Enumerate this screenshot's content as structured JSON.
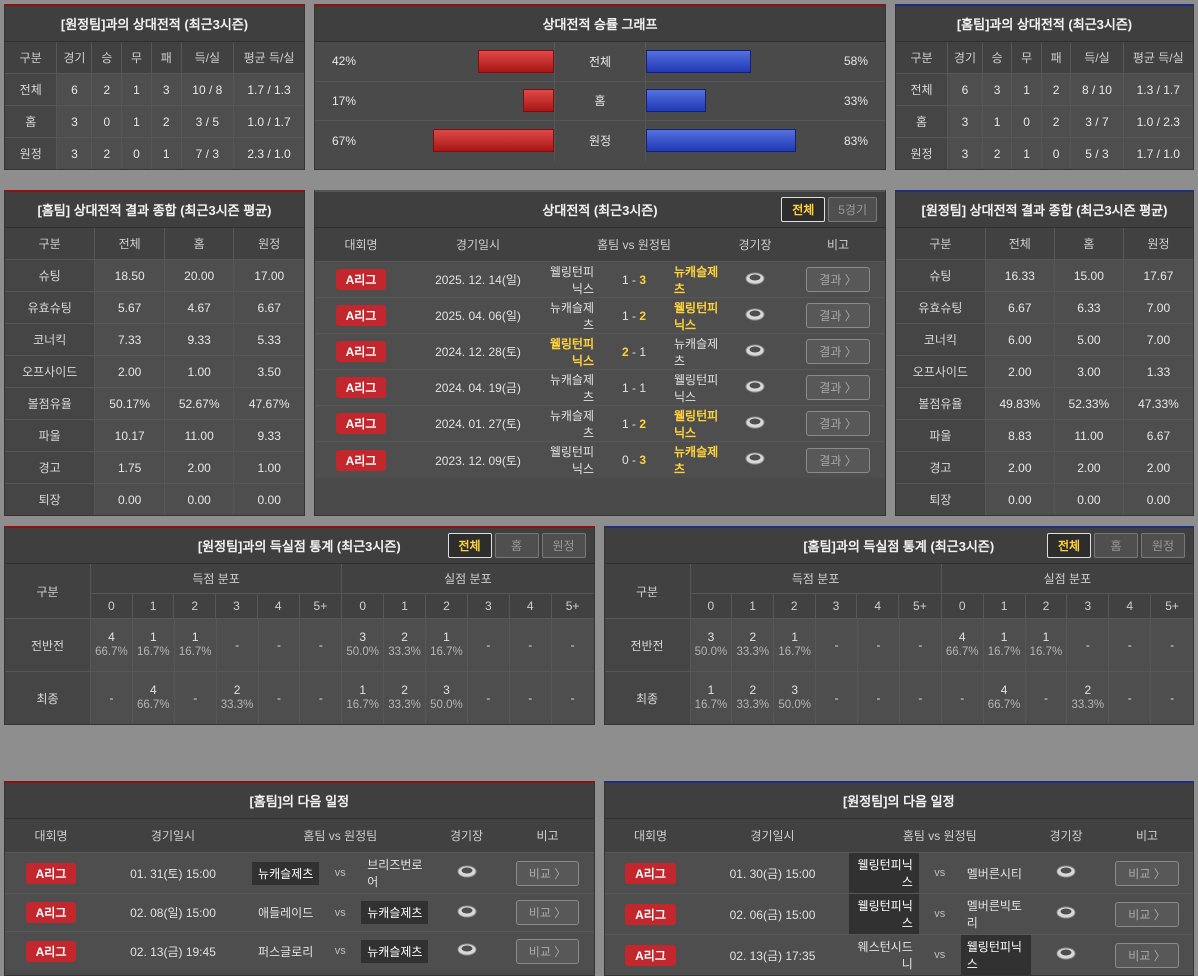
{
  "h2h_away": {
    "title": "[원정팀]과의 상대전적 (최근3시즌)",
    "headers": [
      "구분",
      "경기",
      "승",
      "무",
      "패",
      "득/실",
      "평균 득/실"
    ],
    "rows": [
      {
        "label": "전체",
        "c1": "6",
        "c2": "2",
        "c3": "1",
        "c4": "3",
        "c5": "10 / 8",
        "c6": "1.7 / 1.3"
      },
      {
        "label": "홈",
        "c1": "3",
        "c2": "0",
        "c3": "1",
        "c4": "2",
        "c5": "3 / 5",
        "c6": "1.0 / 1.7"
      },
      {
        "label": "원정",
        "c1": "3",
        "c2": "2",
        "c3": "0",
        "c4": "1",
        "c5": "7 / 3",
        "c6": "2.3 / 1.0"
      }
    ]
  },
  "winrate": {
    "title": "상대전적 승률 그래프",
    "chart_data": {
      "type": "bar",
      "categories": [
        "전체",
        "홈",
        "원정"
      ],
      "series": [
        {
          "name": "home-red",
          "values": [
            42,
            17,
            67
          ]
        },
        {
          "name": "away-blue",
          "values": [
            58,
            33,
            83
          ]
        }
      ],
      "unit": "%",
      "legend_position": "none",
      "colors": {
        "red": "#c1272d",
        "blue": "#2f4cc4"
      }
    },
    "rows": [
      {
        "label": "전체",
        "left_pct": "42%",
        "right_pct": "58%"
      },
      {
        "label": "홈",
        "left_pct": "17%",
        "right_pct": "33%"
      },
      {
        "label": "원정",
        "left_pct": "67%",
        "right_pct": "83%"
      }
    ]
  },
  "h2h_home": {
    "title": "[홈팀]과의 상대전적 (최근3시즌)",
    "headers": [
      "구분",
      "경기",
      "승",
      "무",
      "패",
      "득/실",
      "평균 득/실"
    ],
    "rows": [
      {
        "label": "전체",
        "c1": "6",
        "c2": "3",
        "c3": "1",
        "c4": "2",
        "c5": "8 / 10",
        "c6": "1.3 / 1.7"
      },
      {
        "label": "홈",
        "c1": "3",
        "c2": "1",
        "c3": "0",
        "c4": "2",
        "c5": "3 / 7",
        "c6": "1.0 / 2.3"
      },
      {
        "label": "원정",
        "c1": "3",
        "c2": "2",
        "c3": "1",
        "c4": "0",
        "c5": "5 / 3",
        "c6": "1.7 / 1.0"
      }
    ]
  },
  "summary_home": {
    "title": "[홈팀] 상대전적 결과 종합 (최근3시즌 평균)",
    "headers": [
      "구분",
      "전체",
      "홈",
      "원정"
    ],
    "rows": [
      {
        "label": "슈팅",
        "c1": "18.50",
        "c2": "20.00",
        "c3": "17.00"
      },
      {
        "label": "유효슈팅",
        "c1": "5.67",
        "c2": "4.67",
        "c3": "6.67"
      },
      {
        "label": "코너킥",
        "c1": "7.33",
        "c2": "9.33",
        "c3": "5.33"
      },
      {
        "label": "오프사이드",
        "c1": "2.00",
        "c2": "1.00",
        "c3": "3.50"
      },
      {
        "label": "볼점유율",
        "c1": "50.17%",
        "c2": "52.67%",
        "c3": "47.67%"
      },
      {
        "label": "파울",
        "c1": "10.17",
        "c2": "11.00",
        "c3": "9.33"
      },
      {
        "label": "경고",
        "c1": "1.75",
        "c2": "2.00",
        "c3": "1.00"
      },
      {
        "label": "퇴장",
        "c1": "0.00",
        "c2": "0.00",
        "c3": "0.00"
      }
    ]
  },
  "summary_away": {
    "title": "[원정팀] 상대전적 결과 종합 (최근3시즌 평균)",
    "headers": [
      "구분",
      "전체",
      "홈",
      "원정"
    ],
    "rows": [
      {
        "label": "슈팅",
        "c1": "16.33",
        "c2": "15.00",
        "c3": "17.67"
      },
      {
        "label": "유효슈팅",
        "c1": "6.67",
        "c2": "6.33",
        "c3": "7.00"
      },
      {
        "label": "코너킥",
        "c1": "6.00",
        "c2": "5.00",
        "c3": "7.00"
      },
      {
        "label": "오프사이드",
        "c1": "2.00",
        "c2": "3.00",
        "c3": "1.33"
      },
      {
        "label": "볼점유율",
        "c1": "49.83%",
        "c2": "52.33%",
        "c3": "47.33%"
      },
      {
        "label": "파울",
        "c1": "8.83",
        "c2": "11.00",
        "c3": "6.67"
      },
      {
        "label": "경고",
        "c1": "2.00",
        "c2": "2.00",
        "c3": "2.00"
      },
      {
        "label": "퇴장",
        "c1": "0.00",
        "c2": "0.00",
        "c3": "0.00"
      }
    ]
  },
  "matches": {
    "title": "상대전적 (최근3시즌)",
    "tabs": {
      "all": "전체",
      "five": "5경기"
    },
    "headers": [
      "대회명",
      "경기일시",
      "홈팀  vs  원정팀",
      "경기장",
      "비고"
    ],
    "button_label": "결과 〉",
    "rows": [
      {
        "league": "A리그",
        "date": "2025. 12. 14(일)",
        "home": "웰링턴피닉스",
        "home_cls": "",
        "hs": "1",
        "hs_cls": "",
        "sep": "-",
        "as": "3",
        "as_cls": "win",
        "away": "뉴캐슬제츠",
        "away_cls": "win",
        "btn": "결과 〉"
      },
      {
        "league": "A리그",
        "date": "2025. 04. 06(일)",
        "home": "뉴캐슬제츠",
        "home_cls": "",
        "hs": "1",
        "hs_cls": "",
        "sep": "-",
        "as": "2",
        "as_cls": "win",
        "away": "웰링턴피닉스",
        "away_cls": "win",
        "btn": "결과 〉"
      },
      {
        "league": "A리그",
        "date": "2024. 12. 28(토)",
        "home": "웰링턴피닉스",
        "home_cls": "win",
        "hs": "2",
        "hs_cls": "win",
        "sep": "-",
        "as": "1",
        "as_cls": "",
        "away": "뉴캐슬제츠",
        "away_cls": "",
        "btn": "결과 〉"
      },
      {
        "league": "A리그",
        "date": "2024. 04. 19(금)",
        "home": "뉴캐슬제츠",
        "home_cls": "",
        "hs": "1",
        "hs_cls": "",
        "sep": "-",
        "as": "1",
        "as_cls": "",
        "away": "웰링턴피닉스",
        "away_cls": "",
        "btn": "결과 〉"
      },
      {
        "league": "A리그",
        "date": "2024. 01. 27(토)",
        "home": "뉴캐슬제츠",
        "home_cls": "",
        "hs": "1",
        "hs_cls": "",
        "sep": "-",
        "as": "2",
        "as_cls": "win",
        "away": "웰링턴피닉스",
        "away_cls": "win",
        "btn": "결과 〉"
      },
      {
        "league": "A리그",
        "date": "2023. 12. 09(토)",
        "home": "웰링턴피닉스",
        "home_cls": "",
        "hs": "0",
        "hs_cls": "",
        "sep": "-",
        "as": "3",
        "as_cls": "win",
        "away": "뉴캐슬제츠",
        "away_cls": "win",
        "btn": "결과 〉"
      }
    ]
  },
  "goals_vs_away": {
    "title": "[원정팀]과의 득실점 통계 (최근3시즌)",
    "tabs": {
      "all": "전체",
      "home": "홈",
      "away": "원정"
    },
    "gubun": "구분",
    "group1": "득점 분포",
    "group2": "실점 분포",
    "bins": [
      "0",
      "1",
      "2",
      "3",
      "4",
      "5+"
    ],
    "rows": [
      {
        "label": "전반전",
        "cells": [
          {
            "c": "4",
            "p": "66.7%"
          },
          {
            "c": "1",
            "p": "16.7%"
          },
          {
            "c": "1",
            "p": "16.7%"
          },
          {
            "c": "-",
            "p": ""
          },
          {
            "c": "-",
            "p": ""
          },
          {
            "c": "-",
            "p": ""
          },
          {
            "c": "3",
            "p": "50.0%"
          },
          {
            "c": "2",
            "p": "33.3%"
          },
          {
            "c": "1",
            "p": "16.7%"
          },
          {
            "c": "-",
            "p": ""
          },
          {
            "c": "-",
            "p": ""
          },
          {
            "c": "-",
            "p": ""
          }
        ]
      },
      {
        "label": "최종",
        "cells": [
          {
            "c": "-",
            "p": ""
          },
          {
            "c": "4",
            "p": "66.7%"
          },
          {
            "c": "-",
            "p": ""
          },
          {
            "c": "2",
            "p": "33.3%"
          },
          {
            "c": "-",
            "p": ""
          },
          {
            "c": "-",
            "p": ""
          },
          {
            "c": "1",
            "p": "16.7%"
          },
          {
            "c": "2",
            "p": "33.3%"
          },
          {
            "c": "3",
            "p": "50.0%"
          },
          {
            "c": "-",
            "p": ""
          },
          {
            "c": "-",
            "p": ""
          },
          {
            "c": "-",
            "p": ""
          }
        ]
      }
    ]
  },
  "goals_vs_home": {
    "title": "[홈팀]과의 득실점 통계 (최근3시즌)",
    "tabs": {
      "all": "전체",
      "home": "홈",
      "away": "원정"
    },
    "gubun": "구분",
    "group1": "득점 분포",
    "group2": "실점 분포",
    "bins": [
      "0",
      "1",
      "2",
      "3",
      "4",
      "5+"
    ],
    "rows": [
      {
        "label": "전반전",
        "cells": [
          {
            "c": "3",
            "p": "50.0%"
          },
          {
            "c": "2",
            "p": "33.3%"
          },
          {
            "c": "1",
            "p": "16.7%"
          },
          {
            "c": "-",
            "p": ""
          },
          {
            "c": "-",
            "p": ""
          },
          {
            "c": "-",
            "p": ""
          },
          {
            "c": "4",
            "p": "66.7%"
          },
          {
            "c": "1",
            "p": "16.7%"
          },
          {
            "c": "1",
            "p": "16.7%"
          },
          {
            "c": "-",
            "p": ""
          },
          {
            "c": "-",
            "p": ""
          },
          {
            "c": "-",
            "p": ""
          }
        ]
      },
      {
        "label": "최종",
        "cells": [
          {
            "c": "1",
            "p": "16.7%"
          },
          {
            "c": "2",
            "p": "33.3%"
          },
          {
            "c": "3",
            "p": "50.0%"
          },
          {
            "c": "-",
            "p": ""
          },
          {
            "c": "-",
            "p": ""
          },
          {
            "c": "-",
            "p": ""
          },
          {
            "c": "-",
            "p": ""
          },
          {
            "c": "4",
            "p": "66.7%"
          },
          {
            "c": "-",
            "p": ""
          },
          {
            "c": "2",
            "p": "33.3%"
          },
          {
            "c": "-",
            "p": ""
          },
          {
            "c": "-",
            "p": ""
          }
        ]
      }
    ]
  },
  "sched_home": {
    "title": "[홈팀]의 다음 일정",
    "headers": [
      "대회명",
      "경기일시",
      "홈팀  vs  원정팀",
      "경기장",
      "비고"
    ],
    "rows": [
      {
        "league": "A리그",
        "date": "01. 31(토) 15:00",
        "home": "뉴캐슬제츠",
        "home_hl": "hl",
        "vs": "vs",
        "away": "브리즈번로어",
        "away_hl": "",
        "btn": "비교 〉"
      },
      {
        "league": "A리그",
        "date": "02. 08(일) 15:00",
        "home": "애들레이드",
        "home_hl": "",
        "vs": "vs",
        "away": "뉴캐슬제츠",
        "away_hl": "hl",
        "btn": "비교 〉"
      },
      {
        "league": "A리그",
        "date": "02. 13(금) 19:45",
        "home": "퍼스글로리",
        "home_hl": "",
        "vs": "vs",
        "away": "뉴캐슬제츠",
        "away_hl": "hl",
        "btn": "비교 〉"
      }
    ]
  },
  "sched_away": {
    "title": "[원정팀]의 다음 일정",
    "headers": [
      "대회명",
      "경기일시",
      "홈팀  vs  원정팀",
      "경기장",
      "비고"
    ],
    "rows": [
      {
        "league": "A리그",
        "date": "01. 30(금) 15:00",
        "home": "웰링턴피닉스",
        "home_hl": "hl",
        "vs": "vs",
        "away": "멜버른시티",
        "away_hl": "",
        "btn": "비교 〉"
      },
      {
        "league": "A리그",
        "date": "02. 06(금) 15:00",
        "home": "웰링턴피닉스",
        "home_hl": "hl",
        "vs": "vs",
        "away": "멜버른빅토리",
        "away_hl": "",
        "btn": "비교 〉"
      },
      {
        "league": "A리그",
        "date": "02. 13(금) 17:35",
        "home": "웨스턴시드니",
        "home_hl": "",
        "vs": "vs",
        "away": "웰링턴피닉스",
        "away_hl": "hl",
        "btn": "비교 〉"
      }
    ]
  },
  "bars": {
    "r0_left": "42%",
    "r0_right": "58%",
    "r1_left": "17%",
    "r1_right": "33%",
    "r2_left": "67%",
    "r2_right": "83%"
  }
}
